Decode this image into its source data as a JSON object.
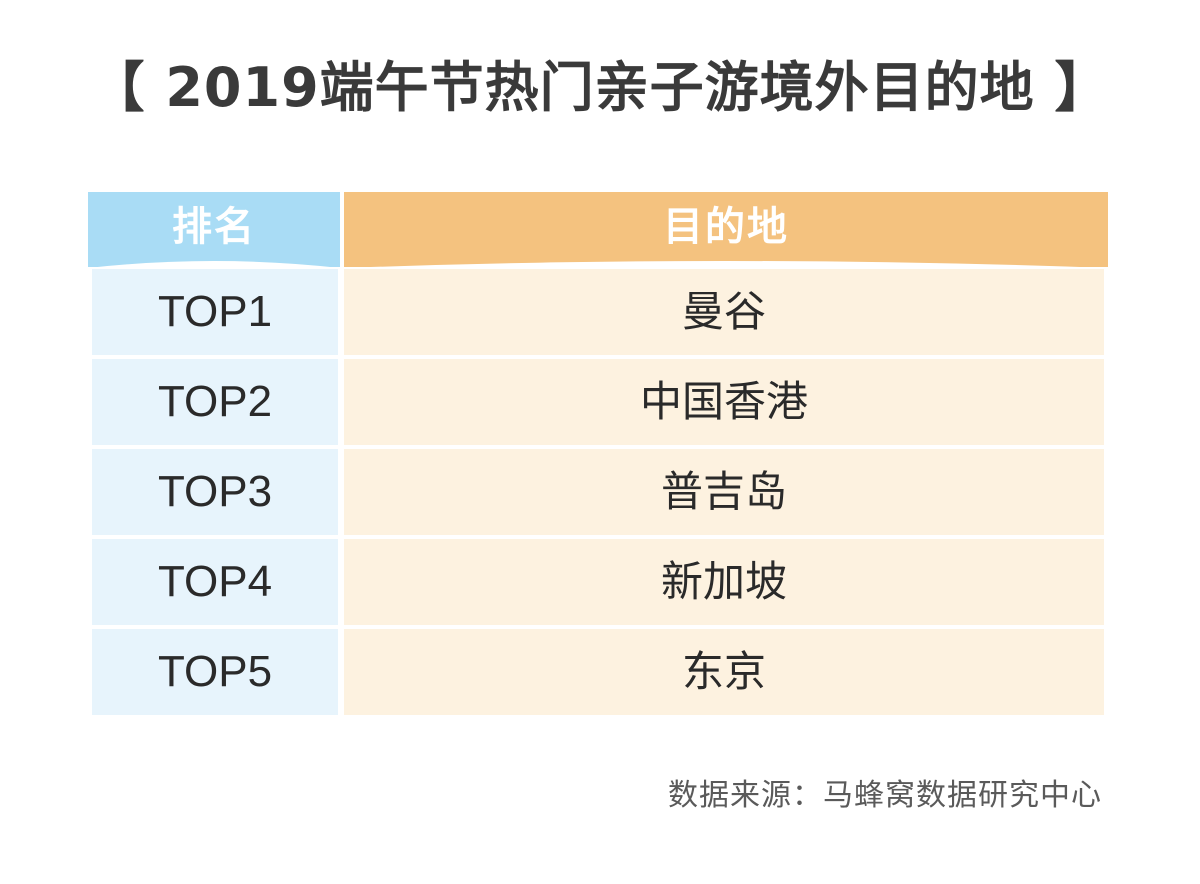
{
  "title": "【 2019端午节热门亲子游境外目的地 】",
  "table": {
    "headers": {
      "rank": "排名",
      "destination": "目的地"
    },
    "rows": [
      {
        "rank": "TOP1",
        "destination": "曼谷"
      },
      {
        "rank": "TOP2",
        "destination": "中国香港"
      },
      {
        "rank": "TOP3",
        "destination": "普吉岛"
      },
      {
        "rank": "TOP4",
        "destination": "新加坡"
      },
      {
        "rank": "TOP5",
        "destination": "东京"
      }
    ]
  },
  "source": "数据来源：马蜂窝数据研究中心",
  "colors": {
    "rank_header": "#a9dcf5",
    "dest_header": "#f4c27f",
    "rank_cell": "#e7f4fc",
    "dest_cell": "#fdf2e0"
  }
}
